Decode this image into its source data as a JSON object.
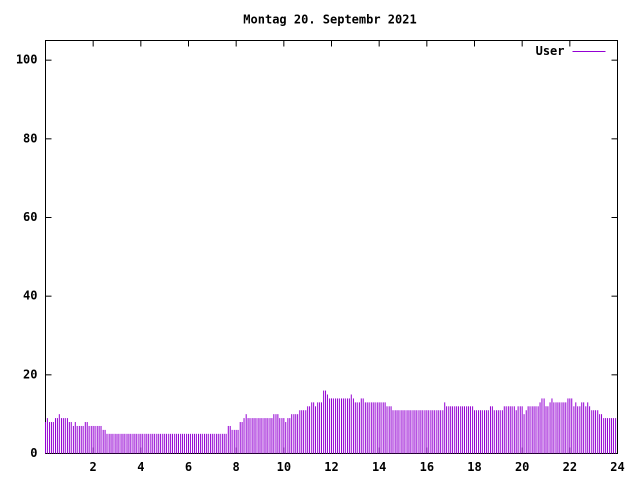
{
  "chart_data": {
    "type": "impulse",
    "title": "Montag 20. Septembr 2021",
    "series": [
      {
        "name": "User",
        "color": "#9400d3",
        "x": [
          0,
          0.08,
          0.17,
          0.25,
          0.33,
          0.42,
          0.5,
          0.58,
          0.67,
          0.75,
          0.83,
          0.92,
          1,
          1.08,
          1.17,
          1.25,
          1.33,
          1.42,
          1.5,
          1.58,
          1.67,
          1.75,
          1.83,
          1.92,
          2,
          2.08,
          2.17,
          2.25,
          2.33,
          2.42,
          2.5,
          2.58,
          2.67,
          2.75,
          2.83,
          2.92,
          3,
          3.08,
          3.17,
          3.25,
          3.33,
          3.42,
          3.5,
          3.58,
          3.67,
          3.75,
          3.83,
          3.92,
          4,
          4.08,
          4.17,
          4.25,
          4.33,
          4.42,
          4.5,
          4.58,
          4.67,
          4.75,
          4.83,
          4.92,
          5,
          5.08,
          5.17,
          5.25,
          5.33,
          5.42,
          5.5,
          5.58,
          5.67,
          5.75,
          5.83,
          5.92,
          6,
          6.08,
          6.17,
          6.25,
          6.33,
          6.42,
          6.5,
          6.58,
          6.67,
          6.75,
          6.83,
          6.92,
          7,
          7.08,
          7.17,
          7.25,
          7.33,
          7.42,
          7.5,
          7.58,
          7.67,
          7.75,
          7.83,
          7.92,
          8,
          8.08,
          8.17,
          8.25,
          8.33,
          8.42,
          8.5,
          8.58,
          8.67,
          8.75,
          8.83,
          8.92,
          9,
          9.08,
          9.17,
          9.25,
          9.33,
          9.42,
          9.5,
          9.58,
          9.67,
          9.75,
          9.83,
          9.92,
          10,
          10.08,
          10.17,
          10.25,
          10.33,
          10.42,
          10.5,
          10.58,
          10.67,
          10.75,
          10.83,
          10.92,
          11,
          11.08,
          11.17,
          11.25,
          11.33,
          11.42,
          11.5,
          11.58,
          11.67,
          11.75,
          11.83,
          11.92,
          12,
          12.08,
          12.17,
          12.25,
          12.33,
          12.42,
          12.5,
          12.58,
          12.67,
          12.75,
          12.83,
          12.92,
          13,
          13.08,
          13.17,
          13.25,
          13.33,
          13.42,
          13.5,
          13.58,
          13.67,
          13.75,
          13.83,
          13.92,
          14,
          14.08,
          14.17,
          14.25,
          14.33,
          14.42,
          14.5,
          14.58,
          14.67,
          14.75,
          14.83,
          14.92,
          15,
          15.08,
          15.17,
          15.25,
          15.33,
          15.42,
          15.5,
          15.58,
          15.67,
          15.75,
          15.83,
          15.92,
          16,
          16.08,
          16.17,
          16.25,
          16.33,
          16.42,
          16.5,
          16.58,
          16.67,
          16.75,
          16.83,
          16.92,
          17,
          17.08,
          17.17,
          17.25,
          17.33,
          17.42,
          17.5,
          17.58,
          17.67,
          17.75,
          17.83,
          17.92,
          18,
          18.08,
          18.17,
          18.25,
          18.33,
          18.42,
          18.5,
          18.58,
          18.67,
          18.75,
          18.83,
          18.92,
          19,
          19.08,
          19.17,
          19.25,
          19.33,
          19.42,
          19.5,
          19.58,
          19.67,
          19.75,
          19.83,
          19.92,
          20,
          20.08,
          20.17,
          20.25,
          20.33,
          20.42,
          20.5,
          20.58,
          20.67,
          20.75,
          20.83,
          20.92,
          21,
          21.08,
          21.17,
          21.25,
          21.33,
          21.42,
          21.5,
          21.58,
          21.67,
          21.75,
          21.83,
          21.92,
          22,
          22.08,
          22.17,
          22.25,
          22.33,
          22.42,
          22.5,
          22.58,
          22.67,
          22.75,
          22.83,
          22.92,
          23,
          23.08,
          23.17,
          23.25,
          23.33,
          23.42,
          23.5,
          23.58,
          23.67,
          23.75,
          23.83,
          23.92
        ],
        "values": [
          8,
          9,
          8,
          8,
          8,
          9,
          9,
          10,
          9,
          9,
          9,
          9,
          8,
          8,
          7,
          8,
          7,
          7,
          7,
          7,
          8,
          8,
          7,
          7,
          7,
          7,
          7,
          7,
          7,
          6,
          6,
          5,
          5,
          5,
          5,
          5,
          5,
          5,
          5,
          5,
          5,
          5,
          5,
          5,
          5,
          5,
          5,
          5,
          5,
          5,
          5,
          5,
          5,
          5,
          5,
          5,
          5,
          5,
          5,
          5,
          5,
          5,
          5,
          5,
          5,
          5,
          5,
          5,
          5,
          5,
          5,
          5,
          5,
          5,
          5,
          5,
          5,
          5,
          5,
          5,
          5,
          5,
          5,
          5,
          5,
          5,
          5,
          5,
          5,
          5,
          5,
          5,
          7,
          7,
          6,
          6,
          6,
          6,
          8,
          8,
          9,
          10,
          9,
          9,
          9,
          9,
          9,
          9,
          9,
          9,
          9,
          9,
          9,
          9,
          9,
          10,
          10,
          10,
          9,
          9,
          9,
          8,
          9,
          9,
          10,
          10,
          10,
          10,
          11,
          11,
          11,
          11,
          12,
          12,
          13,
          13,
          12,
          13,
          13,
          13,
          16,
          16,
          15,
          14,
          14,
          14,
          14,
          14,
          14,
          14,
          14,
          14,
          14,
          14,
          15,
          14,
          13,
          13,
          13,
          14,
          14,
          13,
          13,
          13,
          13,
          13,
          13,
          13,
          13,
          13,
          13,
          13,
          12,
          12,
          12,
          11,
          11,
          11,
          11,
          11,
          11,
          11,
          11,
          11,
          11,
          11,
          11,
          11,
          11,
          11,
          11,
          11,
          11,
          11,
          11,
          11,
          11,
          11,
          11,
          11,
          11,
          13,
          12,
          12,
          12,
          12,
          12,
          12,
          12,
          12,
          12,
          12,
          12,
          12,
          12,
          12,
          11,
          11,
          11,
          11,
          11,
          11,
          11,
          11,
          12,
          12,
          11,
          11,
          11,
          11,
          11,
          12,
          12,
          12,
          12,
          12,
          12,
          11,
          12,
          12,
          12,
          10,
          11,
          12,
          12,
          12,
          12,
          12,
          12,
          13,
          14,
          14,
          12,
          12,
          13,
          14,
          13,
          13,
          13,
          13,
          13,
          13,
          13,
          14,
          14,
          14,
          12,
          13,
          12,
          12,
          13,
          13,
          12,
          13,
          12,
          11,
          11,
          11,
          11,
          10,
          10,
          9,
          9,
          9,
          9,
          9,
          9,
          9
        ]
      }
    ],
    "xlim": [
      0,
      24
    ],
    "xticks": [
      2,
      4,
      6,
      8,
      10,
      12,
      14,
      16,
      18,
      20,
      22,
      24
    ],
    "ylim": [
      0,
      105
    ],
    "yticks": [
      0,
      20,
      40,
      60,
      80,
      100
    ],
    "legend": "top-right"
  }
}
